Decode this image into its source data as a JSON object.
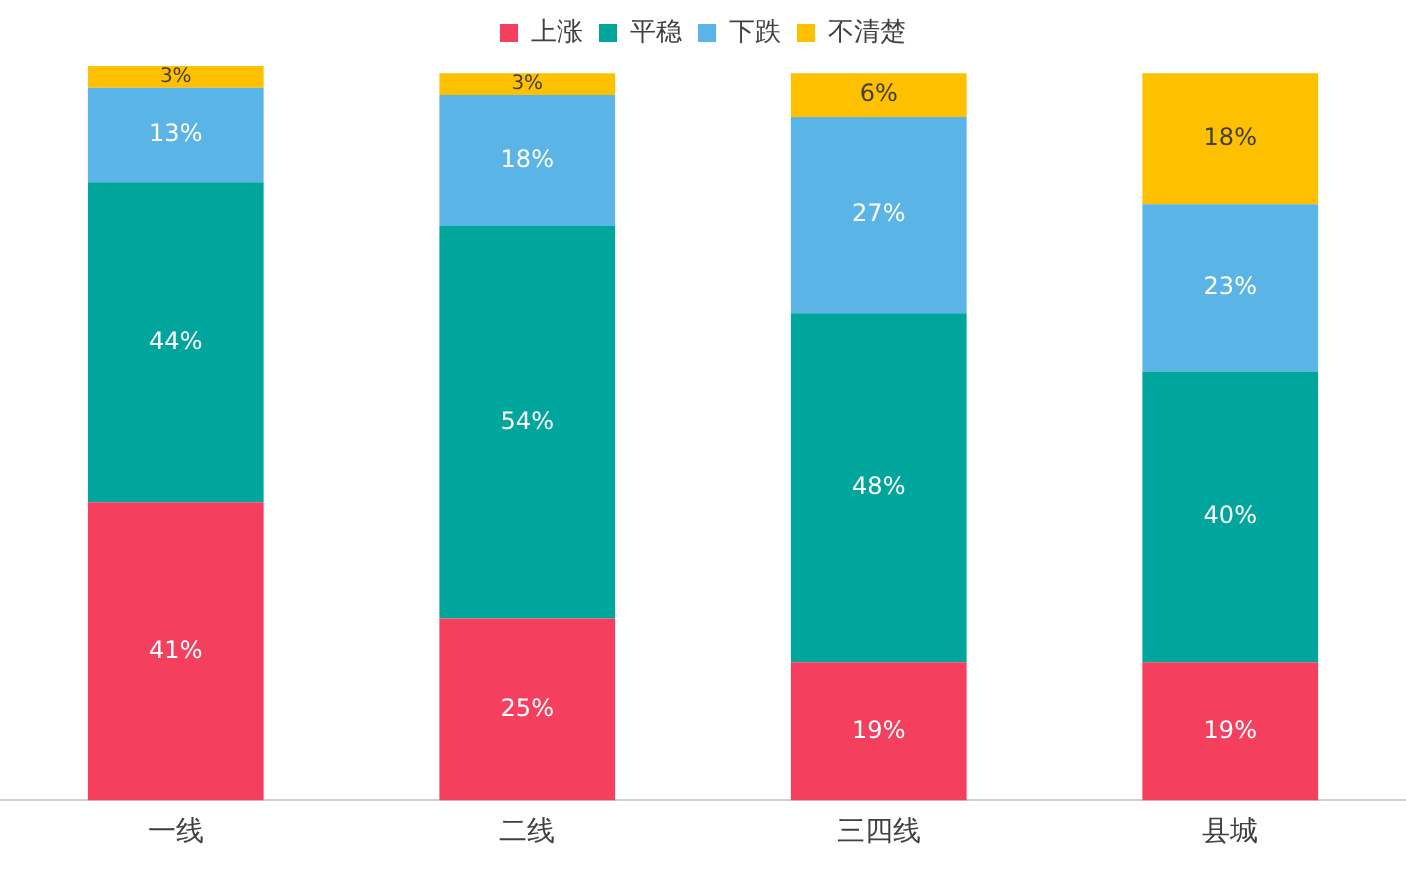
{
  "chart_data": {
    "type": "bar",
    "stacked": true,
    "legend": "top",
    "grid": false,
    "categories": [
      "一线",
      "二线",
      "三四线",
      "县城"
    ],
    "series": [
      {
        "name": "上涨",
        "color": "#f43f5f",
        "values": [
          41,
          25,
          19,
          19
        ],
        "value_labels": [
          "41%",
          "25%",
          "19%",
          "19%"
        ]
      },
      {
        "name": "平稳",
        "color": "#00a69c",
        "values": [
          44,
          54,
          48,
          40
        ],
        "value_labels": [
          "44%",
          "54%",
          "48%",
          "40%"
        ]
      },
      {
        "name": "下跌",
        "color": "#5ab4e5",
        "values": [
          13,
          18,
          27,
          23
        ],
        "value_labels": [
          "13%",
          "18%",
          "27%",
          "23%"
        ]
      },
      {
        "name": "不清楚",
        "color": "#ffc000",
        "values": [
          3,
          3,
          6,
          18
        ],
        "value_labels": [
          "3%",
          "3%",
          "6%",
          "18%"
        ]
      }
    ]
  }
}
